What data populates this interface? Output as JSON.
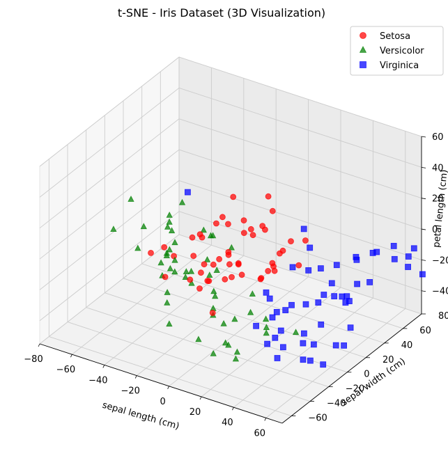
{
  "chart_data": {
    "type": "scatter",
    "projection": "3d",
    "title": "t-SNE - Iris Dataset (3D Visualization)",
    "xlabel": "sepal length (cm)",
    "ylabel": "sepal width (cm)",
    "zlabel": "petal length (cm)",
    "xlim": [
      -80,
      70
    ],
    "ylim": [
      -70,
      80
    ],
    "zlim": [
      -55,
      60
    ],
    "xticks": [
      -80,
      -60,
      -40,
      -20,
      0,
      20,
      40,
      60
    ],
    "yticks": [
      -60,
      -40,
      -20,
      0,
      20,
      40,
      60,
      80
    ],
    "zticks": [
      -40,
      -20,
      0,
      20,
      40,
      60
    ],
    "grid": true,
    "legend": "top-right",
    "series": [
      {
        "name": "Setosa",
        "color": "#ff0000",
        "marker": "circle",
        "points": [
          [
            -41.9,
            -16.7,
            -8.2
          ],
          [
            -30.5,
            -22.1,
            2.0
          ],
          [
            -14.5,
            -19.7,
            12.6
          ],
          [
            -8.0,
            -18.3,
            -3.2
          ],
          [
            -16.8,
            -7.4,
            8.1
          ],
          [
            -2.3,
            -18.2,
            -1.5
          ],
          [
            -6.3,
            -8.2,
            19.1
          ],
          [
            -33.4,
            -6.6,
            -12.1
          ],
          [
            -10.4,
            2.1,
            -10.3
          ],
          [
            -15.3,
            14.2,
            9.6
          ],
          [
            -26.7,
            2.8,
            -14.1
          ],
          [
            5.1,
            -13.8,
            -0.8
          ],
          [
            -3.8,
            0.5,
            -2.7
          ],
          [
            -5.7,
            3.5,
            13.4
          ],
          [
            14.8,
            -17.4,
            -2.6
          ],
          [
            12.0,
            -2.6,
            19.0
          ],
          [
            -28.4,
            15.0,
            -8.5
          ],
          [
            -11.7,
            14.4,
            -13.8
          ],
          [
            6.3,
            9.4,
            7.6
          ],
          [
            -1.3,
            1.3,
            33.5
          ],
          [
            7.4,
            -2.1,
            14.8
          ],
          [
            24.6,
            -6.2,
            -2.1
          ],
          [
            5.9,
            20.3,
            8.2
          ],
          [
            18.7,
            20.0,
            -3.3
          ],
          [
            1.3,
            31.1,
            -0.9
          ],
          [
            8.6,
            21.9,
            27.5
          ],
          [
            2.4,
            6.4,
            17.2
          ],
          [
            35.0,
            0.3,
            17.7
          ],
          [
            24.7,
            33.9,
            -1.2
          ],
          [
            9.5,
            25.0,
            16.9
          ],
          [
            -1.2,
            6.9,
            -12.8
          ],
          [
            -16.0,
            -7.8,
            -16.3
          ],
          [
            11.0,
            23.3,
            -17.7
          ],
          [
            -9.7,
            -10.2,
            -18.4
          ],
          [
            14.9,
            2.6,
            -14.8
          ],
          [
            -4.0,
            -2.9,
            -18.8
          ],
          [
            9.3,
            32.9,
            -14.4
          ],
          [
            13.1,
            20.8,
            -18.7
          ],
          [
            -31.1,
            -20.0,
            -18.5
          ],
          [
            -12.2,
            -7.4,
            -20.5
          ],
          [
            5.3,
            -11.8,
            -10.0
          ],
          [
            17.6,
            -1.4,
            -11.3
          ],
          [
            5.4,
            -4.6,
            -4.4
          ],
          [
            27.9,
            21.1,
            -10.1
          ],
          [
            -11.6,
            -27.2,
            -10.2
          ],
          [
            -10.0,
            -19.7,
            -18.9
          ],
          [
            16.2,
            13.0,
            -8.9
          ],
          [
            4.8,
            -31.4,
            -24.1
          ]
        ]
      },
      {
        "name": "Versicolor",
        "color": "#008000",
        "marker": "triangle",
        "points": [
          [
            -74.0,
            17.8,
            -0.8
          ],
          [
            -55.2,
            26.5,
            -8.8
          ],
          [
            -35.9,
            -9.0,
            6.9
          ],
          [
            -66.3,
            -14.4,
            -2.4
          ],
          [
            -55.3,
            -1.0,
            -3.2
          ],
          [
            -57.0,
            -4.4,
            -16.3
          ],
          [
            -32.3,
            -16.3,
            -7.0
          ],
          [
            -36.3,
            -6.3,
            -9.2
          ],
          [
            -28.9,
            -13.6,
            -17.6
          ],
          [
            -19.7,
            -34.4,
            -2.5
          ],
          [
            -6.4,
            -7.4,
            -11.8
          ],
          [
            -7.6,
            10.5,
            -6.0
          ],
          [
            -22.8,
            -24.0,
            -3.1
          ],
          [
            -34.5,
            -12.4,
            -8.0
          ],
          [
            -28.0,
            -23.4,
            -32.7
          ],
          [
            -15.3,
            -25.7,
            -10.7
          ],
          [
            -35.1,
            -2.6,
            -5.9
          ],
          [
            -47.2,
            12.5,
            -3.9
          ],
          [
            -33.6,
            -18.8,
            -19.2
          ],
          [
            -19.7,
            -11.8,
            -15.0
          ],
          [
            -10.5,
            -8.1,
            -16.0
          ],
          [
            -14.6,
            -20.3,
            -16.9
          ],
          [
            -0.3,
            -21.3,
            -16.8
          ],
          [
            -26.6,
            -25.6,
            -24.5
          ],
          [
            -44.2,
            -1.7,
            -22.6
          ],
          [
            -28.6,
            -17.2,
            10.9
          ],
          [
            -36.0,
            6.8,
            15.3
          ],
          [
            -23.5,
            15.8,
            -6.2
          ],
          [
            -18.7,
            -0.2,
            6.6
          ],
          [
            -8.6,
            -7.8,
            10.1
          ],
          [
            -8.3,
            -14.4,
            -2.3
          ],
          [
            -23.7,
            -10.2,
            -17.3
          ],
          [
            -9.8,
            -3.4,
            -31.6
          ],
          [
            13.6,
            -3.9,
            -21.9
          ],
          [
            2.6,
            -27.1,
            -28.5
          ],
          [
            -16.3,
            -41.4,
            -33.9
          ],
          [
            -3.6,
            -16.2,
            -31.4
          ],
          [
            -1.1,
            -9.2,
            -43.7
          ],
          [
            -4.2,
            -31.0,
            -44.7
          ],
          [
            2.3,
            -3.3,
            -42.4
          ],
          [
            21.8,
            -3.1,
            -41.2
          ],
          [
            28.6,
            -15.5,
            -27.6
          ],
          [
            12.9,
            -31.7,
            -40.8
          ],
          [
            16.8,
            -25.9,
            -48.1
          ],
          [
            13.6,
            -46.0,
            -40.7
          ],
          [
            21.6,
            -35.7,
            -46.3
          ],
          [
            23.8,
            -47.5,
            -31.0
          ],
          [
            21.4,
            -19.5,
            -23.9
          ],
          [
            29.5,
            -16.6,
            -35.8
          ],
          [
            36.9,
            2.3,
            -41.7
          ]
        ]
      },
      {
        "name": "Virginica",
        "color": "#0000ff",
        "marker": "square",
        "points": [
          [
            -23.8,
            -8.5,
            33.5
          ],
          [
            37.9,
            15.6,
            7.3
          ],
          [
            26.5,
            29.1,
            9.2
          ],
          [
            35.4,
            18.5,
            -9.6
          ],
          [
            29.4,
            11.9,
            -6.5
          ],
          [
            34.8,
            32.8,
            -15.3
          ],
          [
            40.5,
            34.8,
            -23.9
          ],
          [
            44.5,
            33.1,
            -9.9
          ],
          [
            47.6,
            48.4,
            -10.9
          ],
          [
            57.8,
            31.4,
            -1.2
          ],
          [
            58.7,
            47.2,
            -3.9
          ],
          [
            64.4,
            41.5,
            1.4
          ],
          [
            62.1,
            63.9,
            -6.1
          ],
          [
            65.2,
            59.3,
            -11.4
          ],
          [
            72.9,
            60.9,
            -7.8
          ],
          [
            69.6,
            72.7,
            -9.2
          ],
          [
            71.7,
            78.1,
            -27.8
          ],
          [
            77.4,
            52.6,
            -9.1
          ],
          [
            56.2,
            26.3,
            -26.1
          ],
          [
            50.6,
            19.8,
            -21.8
          ],
          [
            47.3,
            50.2,
            -29.3
          ],
          [
            44.3,
            19.6,
            -22.9
          ],
          [
            50.3,
            33.9,
            -28.6
          ],
          [
            49.4,
            34.0,
            -33.0
          ],
          [
            48.8,
            61.1,
            -32.8
          ],
          [
            41.7,
            43.7,
            -36.3
          ],
          [
            33.4,
            19.2,
            -32.6
          ],
          [
            34.8,
            30.1,
            -36.1
          ],
          [
            35.4,
            0.3,
            -23.5
          ],
          [
            28.8,
            5.2,
            -31.4
          ],
          [
            27.9,
            -2.5,
            -29.3
          ],
          [
            22.2,
            -0.2,
            -23.6
          ],
          [
            26.6,
            -22.5,
            -29.3
          ],
          [
            21.8,
            -3.4,
            -18.3
          ],
          [
            26.6,
            -5.0,
            -32.0
          ],
          [
            31.8,
            -4.8,
            -38.9
          ],
          [
            29.7,
            -7.5,
            -43.0
          ],
          [
            34.3,
            -6.8,
            -47.8
          ],
          [
            43.0,
            -0.6,
            -45.2
          ],
          [
            47.9,
            2.5,
            -45.8
          ],
          [
            41.5,
            21.4,
            -44.0
          ],
          [
            56.9,
            10.7,
            -47.1
          ],
          [
            57.9,
            24.6,
            -41.9
          ],
          [
            62.9,
            8.8,
            -44.3
          ],
          [
            48.0,
            -1.4,
            -54.4
          ],
          [
            57.1,
            -3.5,
            -52.8
          ],
          [
            37.5,
            -18.7,
            -48.2
          ],
          [
            52.7,
            -17.4,
            -44.6
          ],
          [
            30.9,
            -18.0,
            -41.6
          ],
          [
            45.6,
            -4.0,
            -36.4
          ]
        ]
      }
    ]
  }
}
